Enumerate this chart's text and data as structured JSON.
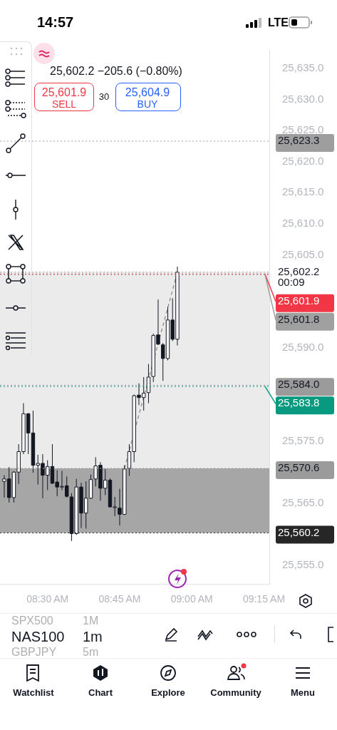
{
  "chart_data": {
    "type": "candlestick",
    "color": "#131722",
    "x": [
      8.35,
      8.3667,
      8.3833,
      8.4,
      8.4167,
      8.4333,
      8.45,
      8.4667,
      8.4833,
      8.5,
      8.5167,
      8.5333,
      8.55,
      8.5667,
      8.5833,
      8.6,
      8.6167,
      8.6333,
      8.65,
      8.6667,
      8.6833,
      8.7,
      8.7167,
      8.7333,
      8.75,
      8.7667,
      8.7833,
      8.8,
      8.8167,
      8.8333,
      8.85,
      8.8667,
      8.8833,
      8.9,
      8.9167,
      8.9333,
      8.95
    ],
    "ohlc": [
      [
        25568.5,
        25569.5,
        25565.9,
        25568.9
      ],
      [
        25568.9,
        25570.8,
        25565.1,
        25565.9
      ],
      [
        25565.9,
        25570.1,
        25565.1,
        25570.0
      ],
      [
        25570.0,
        25574.5,
        25568.1,
        25573.3
      ],
      [
        25573.3,
        25581.1,
        25572.9,
        25579.4
      ],
      [
        25579.4,
        25579.5,
        25572.9,
        25576.3
      ],
      [
        25576.3,
        25579.9,
        25569.9,
        25571.1
      ],
      [
        25571.1,
        25572.8,
        25568.0,
        25571.4
      ],
      [
        25571.4,
        25572.9,
        25565.8,
        25569.5
      ],
      [
        25569.5,
        25571.9,
        25567.1,
        25570.9
      ],
      [
        25570.9,
        25574.5,
        25568.1,
        25568.2
      ],
      [
        25568.4,
        25570.3,
        25566.1,
        25567.6
      ],
      [
        25567.6,
        25570.2,
        25567.1,
        25567.7
      ],
      [
        25567.8,
        25569.3,
        25565.9,
        25566.1
      ],
      [
        25566.0,
        25566.6,
        25558.9,
        25560.1
      ],
      [
        25560.1,
        25568.9,
        25559.9,
        25567.6
      ],
      [
        25567.6,
        25568.3,
        25561.0,
        25563.4
      ],
      [
        25563.4,
        25568.5,
        25560.9,
        25565.8
      ],
      [
        25565.8,
        25569.6,
        25565.7,
        25568.8
      ],
      [
        25568.9,
        25572.4,
        25567.7,
        25571.0
      ],
      [
        25571.1,
        25571.6,
        25565.4,
        25567.4
      ],
      [
        25567.4,
        25570.5,
        25566.3,
        25568.7
      ],
      [
        25568.7,
        25569.0,
        25564.3,
        25564.4
      ],
      [
        25564.4,
        25566.0,
        25562.9,
        25564.4
      ],
      [
        25564.2,
        25567.3,
        25561.4,
        25563.2
      ],
      [
        25563.2,
        25571.1,
        25563.1,
        25570.5
      ],
      [
        25570.6,
        25574.5,
        25569.4,
        25573.3
      ],
      [
        25573.3,
        25582.5,
        25571.6,
        25582.3
      ],
      [
        25582.4,
        25584.3,
        25580.8,
        25582.0
      ],
      [
        25582.0,
        25585.3,
        25579.9,
        25582.7
      ],
      [
        25582.8,
        25587.4,
        25581.1,
        25585.3
      ],
      [
        25585.4,
        25592.3,
        25584.5,
        25592.0
      ],
      [
        25592.1,
        25597.8,
        25590.5,
        25590.6
      ],
      [
        25590.5,
        25590.8,
        25584.7,
        25588.3
      ],
      [
        25588.3,
        25596.6,
        25588.0,
        25594.5
      ],
      [
        25594.5,
        25598.0,
        25591.1,
        25591.4
      ],
      [
        25591.4,
        25603.1,
        25590.4,
        25602.2
      ]
    ],
    "colors": [
      "#ffffff",
      "#131722",
      "#ffffff",
      "#ffffff",
      "#ffffff",
      "#131722",
      "#131722",
      "#ffffff",
      "#131722",
      "#ffffff",
      "#131722",
      "#131722",
      "#ffffff",
      "#131722",
      "#131722",
      "#ffffff",
      "#131722",
      "#ffffff",
      "#ffffff",
      "#ffffff",
      "#131722",
      "#ffffff",
      "#131722",
      "#ffffff",
      "#131722",
      "#ffffff",
      "#ffffff",
      "#ffffff",
      "#131722",
      "#ffffff",
      "#ffffff",
      "#ffffff",
      "#131722",
      "#131722",
      "#ffffff",
      "#131722",
      "#ffffff"
    ],
    "series": [
      {
        "type": "line",
        "color": "#8c8c8c",
        "line_style": "dashed",
        "marker": "none",
        "x": [
          8.7667,
          8.95
        ],
        "values": [
          25570.6,
          25602.2
        ]
      }
    ],
    "xlim": [
      8.3353,
      9.2686
    ],
    "xticks": [
      {
        "value": 8.5,
        "label": "08:30 AM"
      },
      {
        "value": 8.75,
        "label": "08:45 AM"
      },
      {
        "value": 9,
        "label": "09:00 AM"
      },
      {
        "value": 9.25,
        "label": "09:15 AM"
      }
    ],
    "ylim": [
      25552,
      25638
    ],
    "yticks": [
      {
        "value": 25555,
        "label": "25,555.0"
      },
      {
        "value": 25565,
        "label": "25,565.0"
      },
      {
        "value": 25575,
        "label": "25,575.0"
      },
      {
        "value": 25590,
        "label": "25,590.0"
      },
      {
        "value": 25605,
        "label": "25,605.0"
      },
      {
        "value": 25610,
        "label": "25,610.0"
      },
      {
        "value": 25615,
        "label": "25,615.0"
      },
      {
        "value": 25620,
        "label": "25,620.0"
      },
      {
        "value": 25625,
        "label": "25,625.0"
      },
      {
        "value": 25630,
        "label": "25,630.0"
      },
      {
        "value": 25635,
        "label": "25,635.0"
      }
    ],
    "bands": [
      {
        "axis": "y",
        "from": 25570.6,
        "to": 25602.2,
        "color": "#ebebeb"
      },
      {
        "axis": "y",
        "from": 25560.2,
        "to": 25570.6,
        "color": "#a6a6a6"
      }
    ],
    "ref_lines": [
      {
        "axis": "y",
        "value": 25623.3,
        "label": "25,623.3",
        "color": "#9e9e9e"
      },
      {
        "axis": "y",
        "value": 25602.2,
        "label": "25,602.2\n00:09"
      },
      {
        "axis": "y",
        "value": 25601.9,
        "label": "25,601.9",
        "color": "#f23645"
      },
      {
        "axis": "y",
        "value": 25601.8,
        "label": "25,601.8",
        "color": "#a0a0a0"
      },
      {
        "axis": "y",
        "value": 25584.0,
        "label": "25,584.0",
        "color": "#9b9b9b"
      },
      {
        "axis": "y",
        "value": 25583.8,
        "label": "25,583.8",
        "color": "#089981"
      },
      {
        "axis": "y",
        "value": 25570.6,
        "label": "25,570.6",
        "color": "#9b9b9b"
      },
      {
        "axis": "y",
        "value": 25560.2,
        "label": "25,560.2",
        "color": "#262626"
      }
    ],
    "annotations": [
      "14:57",
      "LTE",
      "25,602.2 −205.6 (−0.80%)",
      "25,601.9",
      "SELL",
      "30",
      "25,604.9",
      "BUY",
      "SPX500",
      "1M",
      "NAS100",
      "1m",
      "GBPJPY",
      "5m",
      "Watchlist",
      "Chart",
      "Explore",
      "Community",
      "Menu"
    ]
  }
}
